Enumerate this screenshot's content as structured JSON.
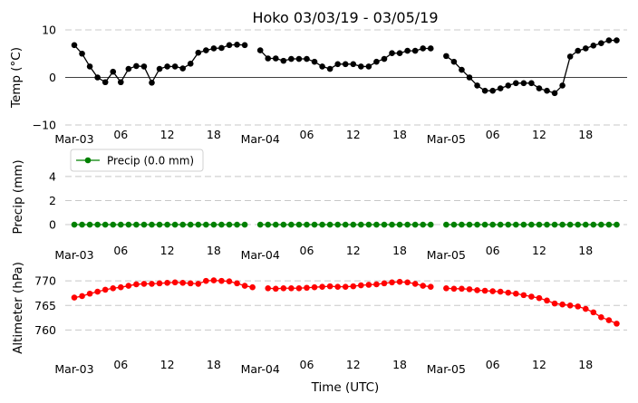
{
  "chart_data": {
    "type": "line",
    "title": "Hoko 03/03/19 - 03/05/19",
    "xlabel": "Time (UTC)",
    "x_hours_start": 0,
    "x_hours_end": 71,
    "x_ticks": [
      {
        "hour": 0,
        "label": "Mar-03"
      },
      {
        "hour": 6,
        "label": "06"
      },
      {
        "hour": 12,
        "label": "12"
      },
      {
        "hour": 18,
        "label": "18"
      },
      {
        "hour": 24,
        "label": "Mar-04"
      },
      {
        "hour": 30,
        "label": "06"
      },
      {
        "hour": 36,
        "label": "12"
      },
      {
        "hour": 42,
        "label": "18"
      },
      {
        "hour": 48,
        "label": "Mar-05"
      },
      {
        "hour": 54,
        "label": "06"
      },
      {
        "hour": 60,
        "label": "12"
      },
      {
        "hour": 66,
        "label": "18"
      }
    ],
    "panels": [
      {
        "name": "temp",
        "ylabel": "Temp (°C)",
        "ylim": [
          -10,
          10
        ],
        "yticks": [
          -10,
          0,
          10
        ],
        "zero_line": true,
        "series": [
          {
            "name": "Temp",
            "color": "#000000",
            "points": [
              [
                0,
                6.8
              ],
              [
                1,
                5.0
              ],
              [
                2,
                2.3
              ],
              [
                3,
                0.0
              ],
              [
                4,
                -1.0
              ],
              [
                5,
                1.2
              ],
              [
                6,
                -1.0
              ],
              [
                7,
                1.8
              ],
              [
                8,
                2.4
              ],
              [
                9,
                2.3
              ],
              [
                10,
                -1.1
              ],
              [
                11,
                1.8
              ],
              [
                12,
                2.3
              ],
              [
                13,
                2.3
              ],
              [
                14,
                1.9
              ],
              [
                15,
                2.9
              ],
              [
                16,
                5.2
              ],
              [
                17,
                5.7
              ],
              [
                18,
                6.1
              ],
              [
                19,
                6.2
              ],
              [
                20,
                6.8
              ],
              [
                21,
                6.9
              ],
              [
                22,
                6.8
              ],
              [
                24,
                5.7
              ],
              [
                25,
                4.0
              ],
              [
                26,
                4.0
              ],
              [
                27,
                3.5
              ],
              [
                28,
                3.9
              ],
              [
                29,
                3.9
              ],
              [
                30,
                3.9
              ],
              [
                31,
                3.3
              ],
              [
                32,
                2.3
              ],
              [
                33,
                1.8
              ],
              [
                34,
                2.8
              ],
              [
                35,
                2.8
              ],
              [
                36,
                2.8
              ],
              [
                37,
                2.3
              ],
              [
                38,
                2.3
              ],
              [
                39,
                3.3
              ],
              [
                40,
                3.9
              ],
              [
                41,
                5.1
              ],
              [
                42,
                5.1
              ],
              [
                43,
                5.6
              ],
              [
                44,
                5.6
              ],
              [
                45,
                6.1
              ],
              [
                46,
                6.1
              ],
              [
                48,
                4.5
              ],
              [
                49,
                3.3
              ],
              [
                50,
                1.6
              ],
              [
                51,
                0.0
              ],
              [
                52,
                -1.7
              ],
              [
                53,
                -2.8
              ],
              [
                54,
                -2.8
              ],
              [
                55,
                -2.3
              ],
              [
                56,
                -1.7
              ],
              [
                57,
                -1.2
              ],
              [
                58,
                -1.2
              ],
              [
                59,
                -1.2
              ],
              [
                60,
                -2.3
              ],
              [
                61,
                -2.8
              ],
              [
                62,
                -3.3
              ],
              [
                63,
                -1.7
              ],
              [
                64,
                4.4
              ],
              [
                65,
                5.6
              ],
              [
                66,
                6.1
              ],
              [
                67,
                6.7
              ],
              [
                68,
                7.2
              ],
              [
                69,
                7.8
              ],
              [
                70,
                7.8
              ]
            ]
          }
        ]
      },
      {
        "name": "precip",
        "ylabel": "Precip (mm)",
        "ylim": [
          -0.6,
          5.2
        ],
        "yticks": [
          0,
          2,
          4
        ],
        "legend": "Precip (0.0 mm)",
        "series": [
          {
            "name": "Precip",
            "color": "#008000",
            "points": [
              [
                0,
                0
              ],
              [
                1,
                0
              ],
              [
                2,
                0
              ],
              [
                3,
                0
              ],
              [
                4,
                0
              ],
              [
                5,
                0
              ],
              [
                6,
                0
              ],
              [
                7,
                0
              ],
              [
                8,
                0
              ],
              [
                9,
                0
              ],
              [
                10,
                0
              ],
              [
                11,
                0
              ],
              [
                12,
                0
              ],
              [
                13,
                0
              ],
              [
                14,
                0
              ],
              [
                15,
                0
              ],
              [
                16,
                0
              ],
              [
                17,
                0
              ],
              [
                18,
                0
              ],
              [
                19,
                0
              ],
              [
                20,
                0
              ],
              [
                21,
                0
              ],
              [
                22,
                0
              ],
              [
                24,
                0
              ],
              [
                25,
                0
              ],
              [
                26,
                0
              ],
              [
                27,
                0
              ],
              [
                28,
                0
              ],
              [
                29,
                0
              ],
              [
                30,
                0
              ],
              [
                31,
                0
              ],
              [
                32,
                0
              ],
              [
                33,
                0
              ],
              [
                34,
                0
              ],
              [
                35,
                0
              ],
              [
                36,
                0
              ],
              [
                37,
                0
              ],
              [
                38,
                0
              ],
              [
                39,
                0
              ],
              [
                40,
                0
              ],
              [
                41,
                0
              ],
              [
                42,
                0
              ],
              [
                43,
                0
              ],
              [
                44,
                0
              ],
              [
                45,
                0
              ],
              [
                46,
                0
              ],
              [
                48,
                0
              ],
              [
                49,
                0
              ],
              [
                50,
                0
              ],
              [
                51,
                0
              ],
              [
                52,
                0
              ],
              [
                53,
                0
              ],
              [
                54,
                0
              ],
              [
                55,
                0
              ],
              [
                56,
                0
              ],
              [
                57,
                0
              ],
              [
                58,
                0
              ],
              [
                59,
                0
              ],
              [
                60,
                0
              ],
              [
                61,
                0
              ],
              [
                62,
                0
              ],
              [
                63,
                0
              ],
              [
                64,
                0
              ],
              [
                65,
                0
              ],
              [
                66,
                0
              ],
              [
                67,
                0
              ],
              [
                68,
                0
              ],
              [
                69,
                0
              ],
              [
                70,
                0
              ]
            ]
          }
        ]
      },
      {
        "name": "altimeter",
        "ylabel": "Altimeter (hPa)",
        "ylim": [
          757.5,
          771.5
        ],
        "yticks": [
          760,
          765,
          770
        ],
        "series": [
          {
            "name": "Altimeter",
            "color": "#ff0000",
            "points": [
              [
                0,
                766.6
              ],
              [
                1,
                766.9
              ],
              [
                2,
                767.4
              ],
              [
                3,
                767.8
              ],
              [
                4,
                768.2
              ],
              [
                5,
                768.5
              ],
              [
                6,
                768.7
              ],
              [
                7,
                769.0
              ],
              [
                8,
                769.3
              ],
              [
                9,
                769.4
              ],
              [
                10,
                769.4
              ],
              [
                11,
                769.5
              ],
              [
                12,
                769.6
              ],
              [
                13,
                769.7
              ],
              [
                14,
                769.6
              ],
              [
                15,
                769.5
              ],
              [
                16,
                769.4
              ],
              [
                17,
                770.0
              ],
              [
                18,
                770.1
              ],
              [
                19,
                770.0
              ],
              [
                20,
                769.9
              ],
              [
                21,
                769.5
              ],
              [
                22,
                769.0
              ],
              [
                23,
                768.7
              ],
              [
                25,
                768.5
              ],
              [
                26,
                768.4
              ],
              [
                27,
                768.5
              ],
              [
                28,
                768.5
              ],
              [
                29,
                768.5
              ],
              [
                30,
                768.6
              ],
              [
                31,
                768.7
              ],
              [
                32,
                768.8
              ],
              [
                33,
                768.9
              ],
              [
                34,
                768.8
              ],
              [
                35,
                768.8
              ],
              [
                36,
                768.9
              ],
              [
                37,
                769.1
              ],
              [
                38,
                769.2
              ],
              [
                39,
                769.3
              ],
              [
                40,
                769.5
              ],
              [
                41,
                769.7
              ],
              [
                42,
                769.8
              ],
              [
                43,
                769.7
              ],
              [
                44,
                769.4
              ],
              [
                45,
                769.0
              ],
              [
                46,
                768.8
              ],
              [
                48,
                768.5
              ],
              [
                49,
                768.4
              ],
              [
                50,
                768.4
              ],
              [
                51,
                768.3
              ],
              [
                52,
                768.1
              ],
              [
                53,
                768.0
              ],
              [
                54,
                767.9
              ],
              [
                55,
                767.8
              ],
              [
                56,
                767.6
              ],
              [
                57,
                767.4
              ],
              [
                58,
                767.1
              ],
              [
                59,
                766.8
              ],
              [
                60,
                766.5
              ],
              [
                61,
                766.0
              ],
              [
                62,
                765.4
              ],
              [
                63,
                765.2
              ],
              [
                64,
                765.0
              ],
              [
                65,
                764.8
              ],
              [
                66,
                764.3
              ],
              [
                67,
                763.6
              ],
              [
                68,
                762.6
              ],
              [
                69,
                762.0
              ],
              [
                70,
                761.3
              ]
            ]
          }
        ]
      }
    ]
  }
}
